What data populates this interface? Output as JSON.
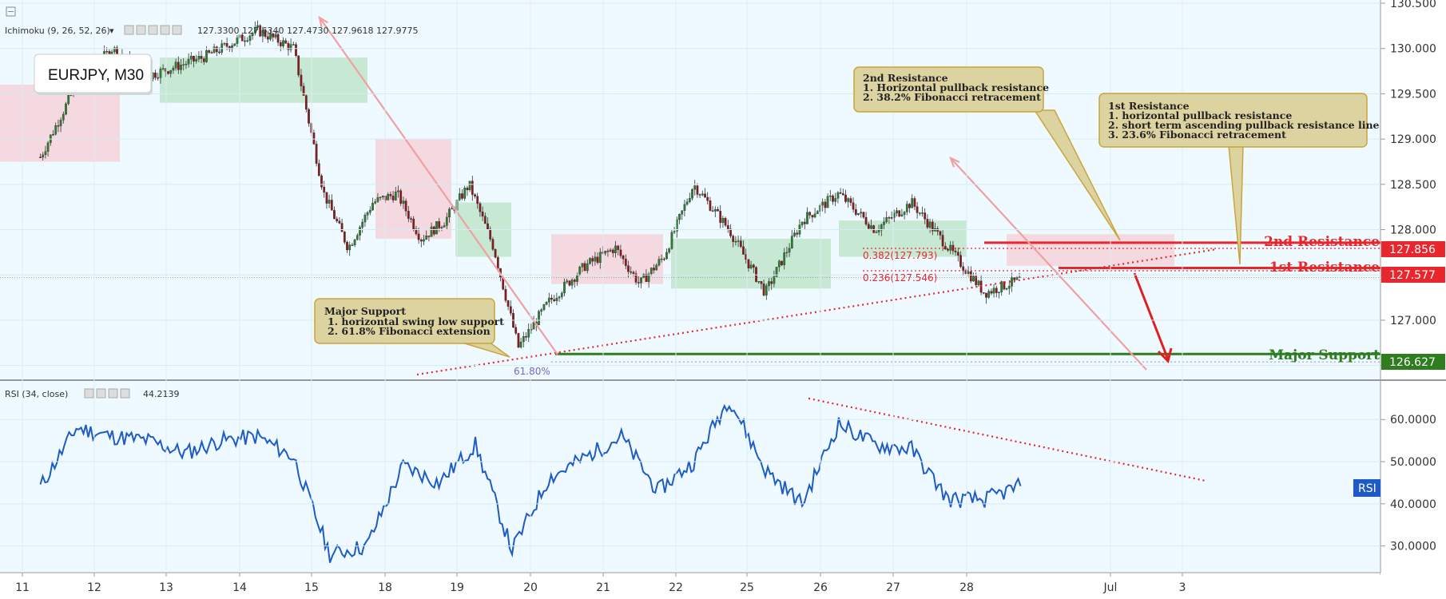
{
  "chart_title": "EURJPY, M30",
  "ichimoku": {
    "label": "Ichimoku (9, 26, 52, 26)",
    "values": [
      {
        "text": "127.3300",
        "color": "#2196f3"
      },
      {
        "text": "127.6340",
        "color": "#8b1a1a"
      },
      {
        "text": "127.4730",
        "color": "#4caf50"
      },
      {
        "text": "127.9618",
        "color": "#1b7a1b"
      },
      {
        "text": "127.9775",
        "color": "#e53935"
      }
    ]
  },
  "rsi_panel": {
    "label": "RSI (34, close)",
    "value": "44.2139",
    "badge": "RSI"
  },
  "notes": {
    "major_support": {
      "title": "Major Support",
      "lines": [
        "1. horizontal swing low support",
        "2. 61.8% Fibonacci extension"
      ]
    },
    "second_resistance": {
      "title": "2nd Resistance",
      "lines": [
        "1. Horizontal pullback resistance",
        "2. 38.2% Fibonacci retracement"
      ]
    },
    "first_resistance": {
      "title": "1st Resistance",
      "lines": [
        "1. horizontal pullback resistance",
        "2. short term ascending pullback resistance line",
        "3. 23.6% Fibonacci retracement"
      ]
    }
  },
  "levels": [
    {
      "name": "2nd Resistance",
      "price": "127.856",
      "color": "#e8262b"
    },
    {
      "name": "1st Resistance",
      "price": "127.577",
      "color": "#e8262b"
    },
    {
      "name": "Major Support",
      "price": "126.627",
      "color": "#2e7d1e"
    }
  ],
  "fib_labels": {
    "r382": "0.382(127.793)",
    "r236": "0.236(127.546)",
    "ext618": "61.80%"
  },
  "colors": {
    "background": "#eefaff",
    "candle_up": "#2e7d32",
    "candle_down": "#8b1a1a",
    "rsi_line": "#1e5bc6",
    "resistance": "#e8262b",
    "support": "#2e7d1e",
    "note_fill": "#ddd3a0",
    "arrow": "#f0a0a0"
  },
  "chart_data": [
    {
      "type": "candlestick",
      "title": "EURJPY, M30",
      "x_ticks": [
        "11",
        "12",
        "13",
        "14",
        "15",
        "18",
        "19",
        "20",
        "21",
        "22",
        "25",
        "26",
        "27",
        "28",
        "Jul",
        "3"
      ],
      "y_ticks": [
        "126.500",
        "127.000",
        "127.500",
        "128.000",
        "128.500",
        "129.000",
        "129.500",
        "130.000",
        "130.500"
      ],
      "ylim": [
        126.4,
        130.5
      ],
      "series": [
        {
          "name": "price path (approx. closes)",
          "points": [
            [
              "11",
              128.8
            ],
            [
              "11",
              129.6
            ],
            [
              "12",
              130.0
            ],
            [
              "12",
              129.7
            ],
            [
              "13",
              129.9
            ],
            [
              "14",
              130.2
            ],
            [
              "14",
              130.0
            ],
            [
              "15",
              128.4
            ],
            [
              "15",
              127.8
            ],
            [
              "15",
              128.3
            ],
            [
              "18",
              128.4
            ],
            [
              "18",
              127.9
            ],
            [
              "18",
              128.1
            ],
            [
              "19",
              128.5
            ],
            [
              "19",
              127.8
            ],
            [
              "19",
              126.7
            ],
            [
              "20",
              127.2
            ],
            [
              "20",
              127.6
            ],
            [
              "21",
              127.8
            ],
            [
              "21",
              127.4
            ],
            [
              "21",
              127.7
            ],
            [
              "22",
              128.5
            ],
            [
              "22",
              128.0
            ],
            [
              "25",
              127.3
            ],
            [
              "25",
              128.1
            ],
            [
              "26",
              128.4
            ],
            [
              "26",
              128.0
            ],
            [
              "27",
              128.3
            ],
            [
              "27",
              127.8
            ],
            [
              "28",
              127.3
            ],
            [
              "28",
              127.45
            ]
          ]
        }
      ],
      "horizontal_levels": [
        {
          "name": "2nd Resistance",
          "value": 127.856
        },
        {
          "name": "1st Resistance",
          "value": 127.577
        },
        {
          "name": "Major Support",
          "value": 126.627
        }
      ],
      "fibonacci": [
        {
          "label": "0.382(127.793)",
          "value": 127.793
        },
        {
          "label": "0.236(127.546)",
          "value": 127.546
        },
        {
          "label": "61.80%",
          "value": 126.54
        }
      ]
    },
    {
      "type": "line",
      "title": "RSI (34, close)",
      "x_ticks": [
        "11",
        "12",
        "13",
        "14",
        "15",
        "18",
        "19",
        "20",
        "21",
        "22",
        "25",
        "26",
        "27",
        "28",
        "Jul",
        "3"
      ],
      "y_ticks": [
        "30.0000",
        "40.0000",
        "50.0000",
        "60.0000"
      ],
      "ylim": [
        25,
        68
      ],
      "series": [
        {
          "name": "RSI (34, close)",
          "points": [
            [
              "11",
              44
            ],
            [
              "11",
              58
            ],
            [
              "12",
              56
            ],
            [
              "12",
              55
            ],
            [
              "13",
              52
            ],
            [
              "13",
              55
            ],
            [
              "14",
              56
            ],
            [
              "14",
              51
            ],
            [
              "15",
              28
            ],
            [
              "15",
              30
            ],
            [
              "18",
              49
            ],
            [
              "18",
              45
            ],
            [
              "19",
              54
            ],
            [
              "19",
              29
            ],
            [
              "20",
              46
            ],
            [
              "20",
              51
            ],
            [
              "21",
              56
            ],
            [
              "21",
              43
            ],
            [
              "22",
              50
            ],
            [
              "22",
              65
            ],
            [
              "25",
              48
            ],
            [
              "25",
              40
            ],
            [
              "26",
              59
            ],
            [
              "26",
              54
            ],
            [
              "27",
              53
            ],
            [
              "27",
              41
            ],
            [
              "28",
              41
            ],
            [
              "28",
              44.2
            ]
          ]
        }
      ]
    }
  ]
}
